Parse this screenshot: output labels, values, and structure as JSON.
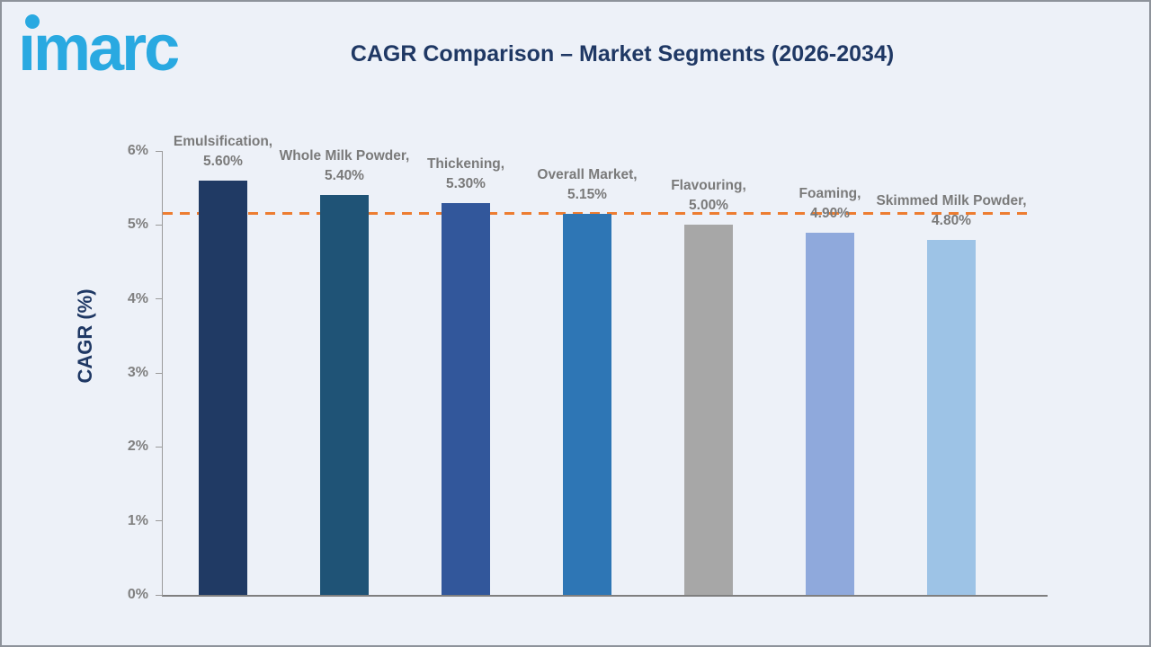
{
  "page": {
    "background": "#EDF1F8",
    "border_color": "#8E939B"
  },
  "header": {
    "logo_text": "imarc",
    "logo_color": "#29A9E1",
    "title": "CAGR Comparison – Market Segments (2026-2034)",
    "title_color": "#1F3864"
  },
  "chart_data": {
    "type": "bar",
    "title": "CAGR Comparison – Market Segments (2026-2034)",
    "xlabel": "",
    "ylabel": "CAGR (%)",
    "categories": [
      "Emulsification",
      "Whole Milk Powder",
      "Thickening",
      "Overall Market",
      "Flavouring",
      "Foaming",
      "Skimmed Milk Powder"
    ],
    "values": [
      5.6,
      5.4,
      5.3,
      5.15,
      5.0,
      4.9,
      4.8
    ],
    "label_lines": [
      [
        "Emulsification,",
        "5.60%"
      ],
      [
        "Whole Milk Powder,",
        "5.40%"
      ],
      [
        "Thickening,",
        "5.30%"
      ],
      [
        "Overall Market,",
        "5.15%"
      ],
      [
        "Flavouring,",
        "5.00%"
      ],
      [
        "Foaming,",
        "4.90%"
      ],
      [
        "Skimmed Milk Powder,",
        "4.80%"
      ]
    ],
    "bar_colors": [
      "#203A64",
      "#1F5376",
      "#32579B",
      "#2E76B5",
      "#A7A7A7",
      "#8FA9DC",
      "#9DC3E6"
    ],
    "ylim": [
      0,
      6
    ],
    "yticks": [
      "0%",
      "1%",
      "2%",
      "3%",
      "4%",
      "5%",
      "6%"
    ],
    "ytick_values": [
      0,
      1,
      2,
      3,
      4,
      5,
      6
    ],
    "grid": false,
    "legend": false,
    "label_color": "#7A7A7A",
    "tick_color": "#808080",
    "reference_line": {
      "value": 5.15,
      "color": "#ED7D31",
      "style": "dashed"
    }
  }
}
